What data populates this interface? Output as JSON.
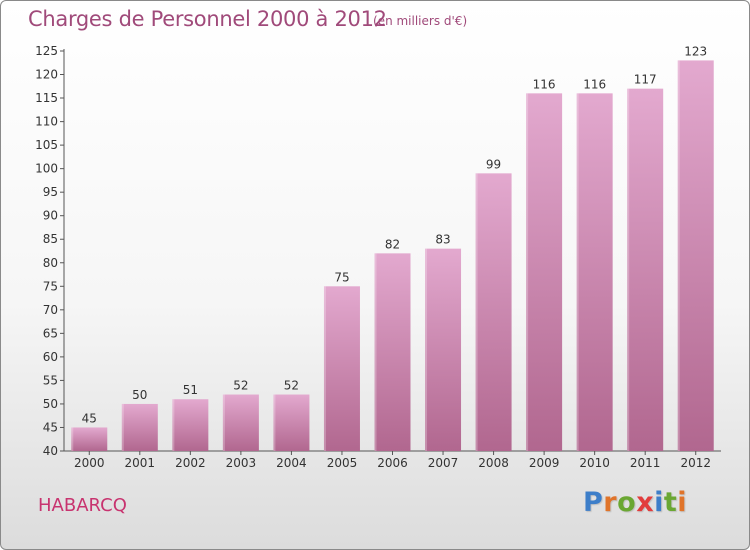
{
  "title": "Charges de Personnel 2000 à 2012",
  "subtitle": "(en milliers d'€)",
  "commune": "HABARCQ",
  "logo": {
    "letters": [
      "P",
      "r",
      "o",
      "x",
      "i",
      "t",
      "i"
    ],
    "colors": [
      "#3d7ec9",
      "#e0742a",
      "#6aa732",
      "#e23c3c",
      "#3d7ec9",
      "#6aa732",
      "#e0742a"
    ]
  },
  "colors": {
    "bar_top": "#e3a9cf",
    "bar_bottom": "#b1678f",
    "title": "#a04a7a",
    "commune": "#c8336f"
  },
  "chart_data": {
    "type": "bar",
    "title": "Charges de Personnel 2000 à 2012",
    "subtitle": "(en milliers d'€)",
    "categories": [
      "2000",
      "2001",
      "2002",
      "2003",
      "2004",
      "2005",
      "2006",
      "2007",
      "2008",
      "2009",
      "2010",
      "2011",
      "2012"
    ],
    "values": [
      45,
      50,
      51,
      52,
      52,
      75,
      82,
      83,
      99,
      116,
      116,
      117,
      123
    ],
    "ylim": [
      40,
      125
    ],
    "yticks": [
      40,
      45,
      50,
      55,
      60,
      65,
      70,
      75,
      80,
      85,
      90,
      95,
      100,
      105,
      110,
      115,
      120,
      125
    ],
    "grid": false,
    "xlabel": "",
    "ylabel": ""
  }
}
